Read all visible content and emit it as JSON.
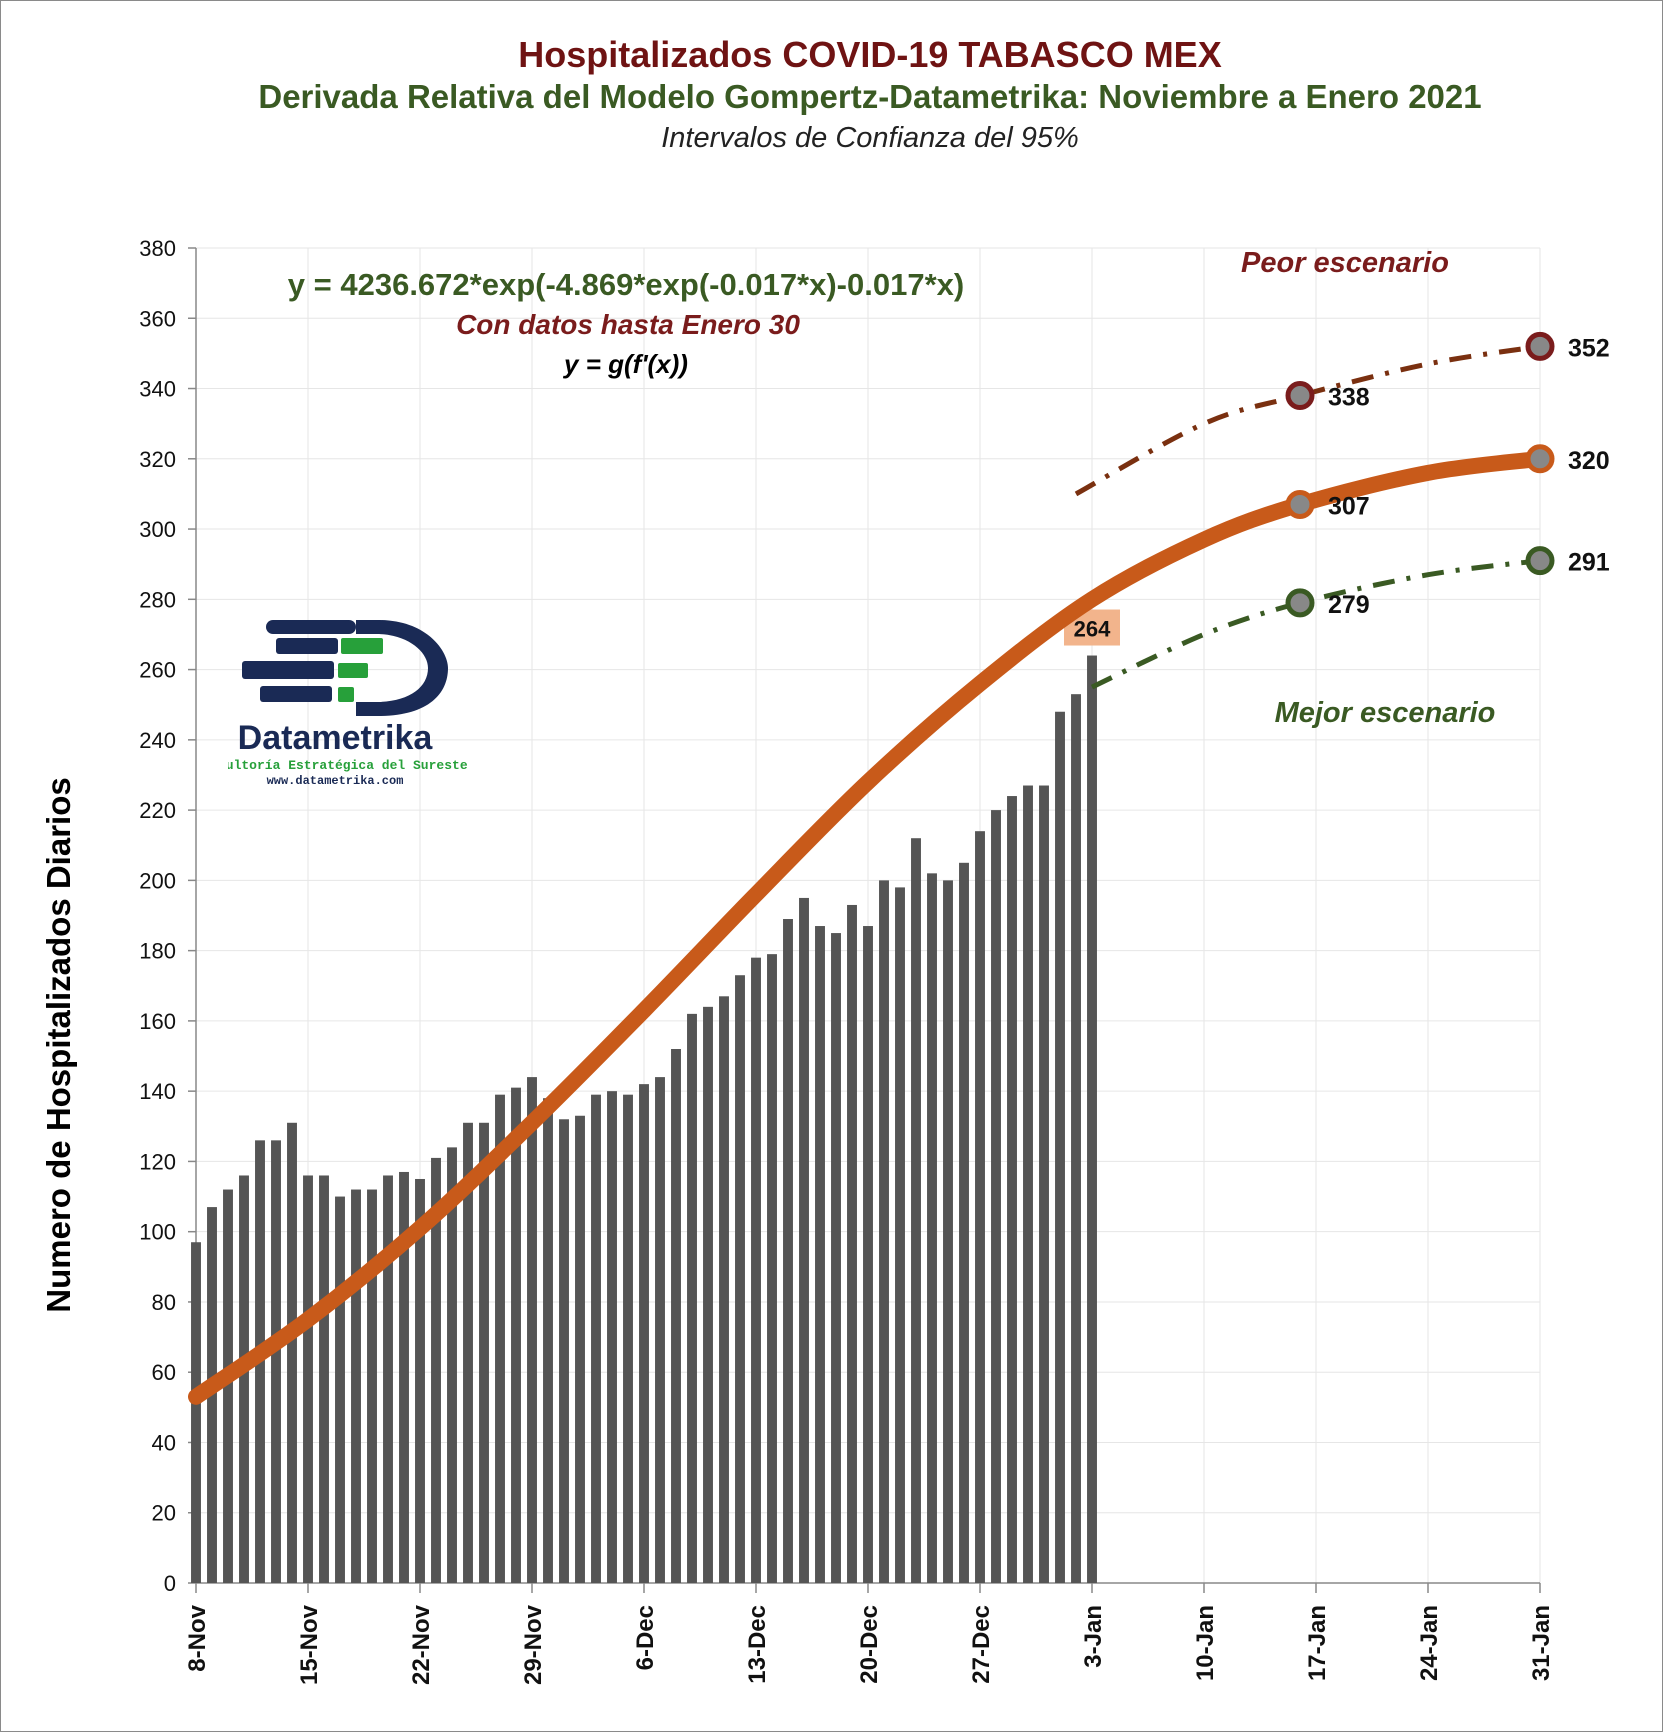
{
  "title": "Hospitalizados COVID-19 TABASCO MEX",
  "subtitle": "Derivada Relativa del Modelo Gompertz-Datametrika: Noviembre a Enero 2021",
  "subtitle2": "Intervalos de Confianza del 95%",
  "equation": "y = 4236.672*exp(-4.869*exp(-0.017*x)-0.017*x)",
  "note_data": "Con datos hasta Enero 30",
  "note_formula": "y = g(f'(x))",
  "label_worst": "Peor escenario",
  "label_best": "Mejor escenario",
  "logo": {
    "name": "Datametrika",
    "tagline": "Cosultoría Estratégica del Sureste",
    "url": "www.datametrika.com"
  },
  "colors": {
    "bars": "#555555",
    "model": "#c85a1a",
    "worst": "#7a3010",
    "best": "#3a5a23",
    "worst_marker": "#7a1c1c",
    "title": "#6f1313",
    "subtitle": "#3a5a23"
  },
  "chart_data": {
    "type": "bar",
    "ylabel": "Numero de Hospitalizados Diarios",
    "ylim": [
      0,
      380
    ],
    "yticks": [
      0,
      20,
      40,
      60,
      80,
      100,
      120,
      140,
      160,
      180,
      200,
      220,
      240,
      260,
      280,
      300,
      320,
      340,
      360,
      380
    ],
    "xticks": [
      "8-Nov",
      "15-Nov",
      "22-Nov",
      "29-Nov",
      "6-Dec",
      "13-Dec",
      "20-Dec",
      "27-Dec",
      "3-Jan",
      "10-Jan",
      "17-Jan",
      "24-Jan",
      "31-Jan"
    ],
    "x_range_days": [
      0,
      84
    ],
    "grid": true,
    "bars": {
      "start": "8-Nov",
      "values": [
        97,
        107,
        112,
        116,
        126,
        126,
        131,
        116,
        116,
        110,
        112,
        112,
        116,
        117,
        115,
        121,
        124,
        131,
        131,
        139,
        141,
        144,
        138,
        132,
        133,
        139,
        140,
        139,
        142,
        144,
        152,
        162,
        164,
        167,
        173,
        178,
        179,
        189,
        195,
        187,
        185,
        193,
        187,
        200,
        198,
        212,
        202,
        200,
        205,
        214,
        220,
        224,
        227,
        227,
        248,
        253,
        264
      ],
      "highlight_label": "264"
    },
    "series": [
      {
        "role": "model",
        "x": [
          "8-Nov",
          "15-Nov",
          "22-Nov",
          "29-Nov",
          "6-Dec",
          "13-Dec",
          "20-Dec",
          "27-Dec",
          "3-Jan",
          "10-Jan",
          "16-Jan",
          "24-Jan",
          "31-Jan"
        ],
        "values": [
          53,
          75,
          101,
          131,
          163,
          196,
          228,
          256,
          280,
          297,
          307,
          316,
          320
        ]
      },
      {
        "role": "worst",
        "x": [
          "2-Jan",
          "10-Jan",
          "16-Jan",
          "24-Jan",
          "31-Jan"
        ],
        "values": [
          310,
          330,
          338,
          347,
          352
        ]
      },
      {
        "role": "best",
        "x": [
          "3-Jan",
          "10-Jan",
          "16-Jan",
          "24-Jan",
          "31-Jan"
        ],
        "values": [
          255,
          270,
          279,
          287,
          291
        ]
      }
    ],
    "markers": [
      {
        "role": "worst",
        "x": "16-Jan",
        "value": 338,
        "label": "338"
      },
      {
        "role": "worst",
        "x": "31-Jan",
        "value": 352,
        "label": "352"
      },
      {
        "role": "model",
        "x": "16-Jan",
        "value": 307,
        "label": "307"
      },
      {
        "role": "model",
        "x": "31-Jan",
        "value": 320,
        "label": "320"
      },
      {
        "role": "best",
        "x": "16-Jan",
        "value": 279,
        "label": "279"
      },
      {
        "role": "best",
        "x": "31-Jan",
        "value": 291,
        "label": "291"
      }
    ]
  }
}
